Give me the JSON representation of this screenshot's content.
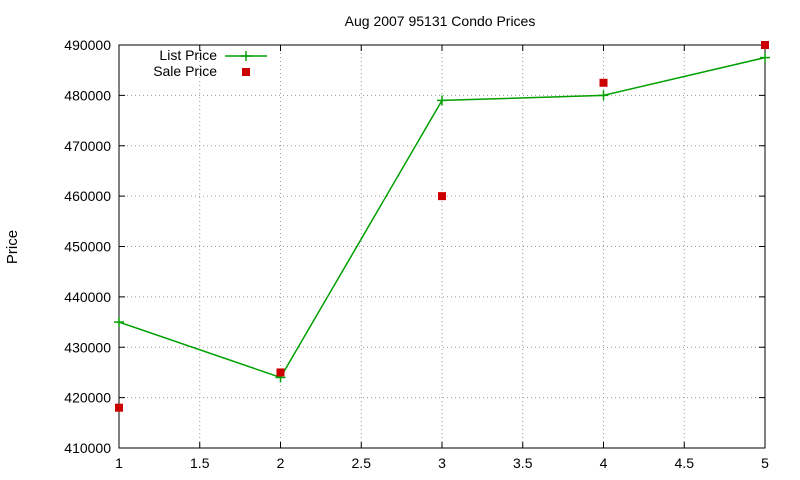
{
  "chart_data": {
    "type": "line",
    "title": "Aug 2007 95131 Condo Prices",
    "xlabel": "",
    "ylabel": "Price",
    "xlim": [
      1,
      5
    ],
    "ylim": [
      410000,
      490000
    ],
    "x_ticks": [
      1,
      1.5,
      2,
      2.5,
      3,
      3.5,
      4,
      4.5,
      5
    ],
    "x_tick_labels": [
      "1",
      "1.5",
      "2",
      "2.5",
      "3",
      "3.5",
      "4",
      "4.5",
      "5"
    ],
    "y_ticks": [
      410000,
      420000,
      430000,
      440000,
      450000,
      460000,
      470000,
      480000,
      490000
    ],
    "y_tick_labels": [
      "410000",
      "420000",
      "430000",
      "440000",
      "450000",
      "460000",
      "470000",
      "480000",
      "490000"
    ],
    "grid": true,
    "legend_position": "top-left",
    "series": [
      {
        "name": "List Price",
        "style": "linespoints",
        "marker": "plus",
        "color": "#00a000",
        "x": [
          1,
          2,
          3,
          4,
          5
        ],
        "y": [
          435000,
          424000,
          479000,
          480000,
          487500
        ]
      },
      {
        "name": "Sale Price",
        "style": "points",
        "marker": "square",
        "color": "#cc0000",
        "x": [
          1,
          2,
          3,
          4,
          5
        ],
        "y": [
          418000,
          425000,
          460000,
          482500,
          490000
        ]
      }
    ]
  }
}
